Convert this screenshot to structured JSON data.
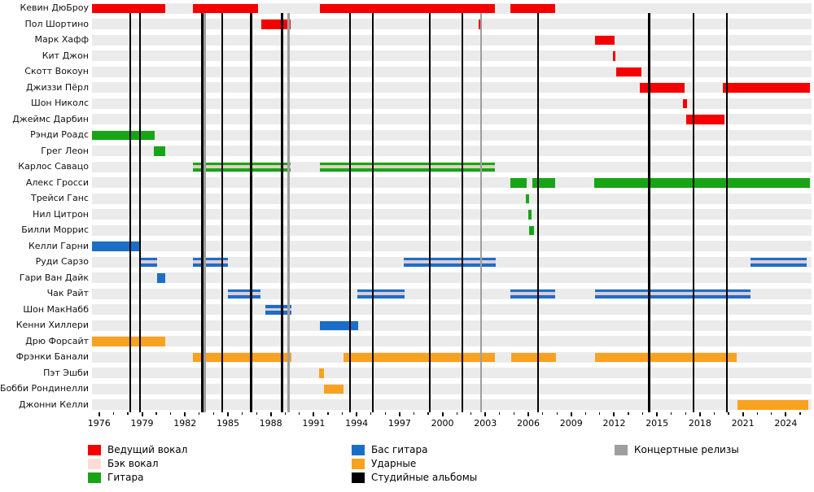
{
  "chart_data": {
    "type": "timeline-gantt",
    "title": "",
    "axis": {
      "start_year": 1975.5,
      "end_year": 2025.8,
      "major_tick_years": [
        1976,
        1979,
        1982,
        1985,
        1988,
        1991,
        1994,
        1997,
        2000,
        2003,
        2006,
        2009,
        2012,
        2015,
        2018,
        2021,
        2024
      ],
      "minor_tick_step": 1
    },
    "colors": {
      "lead_vocals": "#f40000",
      "backing_vocals": "#fcdcd6",
      "guitar": "#17a517",
      "bass": "#1b6ec8",
      "drums": "#f9a21f",
      "studio_album": "#000000",
      "live_release": "#9e9e9e",
      "row_band": "#ebebeb"
    },
    "legend": [
      {
        "label": "Ведущий вокал",
        "color_key": "lead_vocals",
        "col": 0,
        "row": 0
      },
      {
        "label": "Бэк вокал",
        "color_key": "backing_vocals",
        "col": 0,
        "row": 1
      },
      {
        "label": "Гитара",
        "color_key": "guitar",
        "col": 0,
        "row": 2
      },
      {
        "label": "Бас гитара",
        "color_key": "bass",
        "col": 1,
        "row": 0
      },
      {
        "label": "Ударные",
        "color_key": "drums",
        "col": 1,
        "row": 1
      },
      {
        "label": "Студийные альбомы",
        "color_key": "studio_album",
        "col": 1,
        "row": 2
      },
      {
        "label": "Концертные релизы",
        "color_key": "live_release",
        "col": 2,
        "row": 0
      }
    ],
    "members": [
      {
        "name": "Кевин ДюБроу",
        "role": "lead_vocals",
        "bars": [
          [
            1975.5,
            1980.62
          ],
          [
            1982.56,
            1987.11
          ],
          [
            1991.43,
            2003.66
          ],
          [
            2004.74,
            2007.87
          ]
        ]
      },
      {
        "name": "Пол Шортино",
        "role": "lead_vocals",
        "bars": [
          [
            1987.33,
            1989.38
          ],
          [
            2002.55,
            2002.73
          ]
        ]
      },
      {
        "name": "Марк Хафф",
        "role": "lead_vocals",
        "bars": [
          [
            2010.66,
            2012.03
          ]
        ]
      },
      {
        "name": "Кит Джон",
        "role": "lead_vocals",
        "bars": [
          [
            2011.89,
            2012.11
          ]
        ]
      },
      {
        "name": "Скотт Вокоун",
        "role": "lead_vocals",
        "bars": [
          [
            2012.14,
            2013.91
          ]
        ]
      },
      {
        "name": "Джиззи Пёрл",
        "role": "lead_vocals",
        "bars": [
          [
            2013.79,
            2016.92
          ],
          [
            2019.6,
            2025.69
          ]
        ]
      },
      {
        "name": "Шон Николс",
        "role": "lead_vocals",
        "bars": [
          [
            2016.81,
            2017.09
          ]
        ]
      },
      {
        "name": "Джеймс Дарбин",
        "role": "lead_vocals",
        "bars": [
          [
            2017.03,
            2019.71
          ]
        ]
      },
      {
        "name": "Рэнди Роадс",
        "role": "guitar",
        "bars": [
          [
            1975.5,
            1979.88
          ]
        ]
      },
      {
        "name": "Грег Леон",
        "role": "guitar",
        "bars": [
          [
            1979.82,
            1980.62
          ]
        ]
      },
      {
        "name": "Карлос Савацо",
        "role": "guitar",
        "backing_vocals": true,
        "bars": [
          [
            1982.56,
            1989.38
          ],
          [
            1991.43,
            2003.66
          ]
        ]
      },
      {
        "name": "Алекс Гросси",
        "role": "guitar",
        "bars": [
          [
            2004.74,
            2005.88
          ],
          [
            2006.28,
            2007.87
          ],
          [
            2010.61,
            2025.69
          ]
        ]
      },
      {
        "name": "Трейси Ганс",
        "role": "guitar",
        "bars": [
          [
            2005.8,
            2006.08
          ]
        ]
      },
      {
        "name": "Нил Цитрон",
        "role": "guitar",
        "bars": [
          [
            2006.0,
            2006.22
          ]
        ]
      },
      {
        "name": "Билли Моррис",
        "role": "guitar",
        "bars": [
          [
            2006.05,
            2006.39
          ]
        ]
      },
      {
        "name": "Келли Гарни",
        "role": "bass",
        "bars": [
          [
            1975.5,
            1978.8
          ]
        ]
      },
      {
        "name": "Руди Сарзо",
        "role": "bass",
        "backing_vocals": true,
        "bars": [
          [
            1978.8,
            1980.05
          ],
          [
            1982.58,
            1985.0
          ],
          [
            1997.29,
            2003.72
          ],
          [
            2021.53,
            2025.46
          ]
        ]
      },
      {
        "name": "Гари Ван Дайк",
        "role": "bass",
        "bars": [
          [
            1980.05,
            1980.62
          ]
        ]
      },
      {
        "name": "Чак Райт",
        "role": "bass",
        "backing_vocals": true,
        "bars": [
          [
            1985.0,
            1987.28
          ],
          [
            1994.05,
            1997.35
          ],
          [
            2004.74,
            2007.87
          ],
          [
            2010.66,
            2021.53
          ]
        ]
      },
      {
        "name": "Шон МакНабб",
        "role": "bass",
        "backing_vocals": true,
        "bars": [
          [
            1987.62,
            1989.44
          ]
        ]
      },
      {
        "name": "Кенни Хиллери",
        "role": "bass",
        "bars": [
          [
            1991.43,
            1994.11
          ]
        ]
      },
      {
        "name": "Дрю Форсайт",
        "role": "drums",
        "fuzzy": "top",
        "bars": [
          [
            1975.5,
            1980.62
          ]
        ]
      },
      {
        "name": "Фрэнки Банали",
        "role": "drums",
        "fuzzy": "bottom",
        "bars": [
          [
            1982.56,
            1989.44
          ],
          [
            1993.08,
            2003.66
          ],
          [
            2004.8,
            2007.93
          ],
          [
            2010.66,
            2020.57
          ]
        ]
      },
      {
        "name": "Пэт Эшби",
        "role": "drums",
        "bars": [
          [
            1991.4,
            1991.72
          ]
        ]
      },
      {
        "name": "Бобби Рондинелли",
        "role": "drums",
        "bars": [
          [
            1991.72,
            1993.08
          ]
        ]
      },
      {
        "name": "Джонни Келли",
        "role": "drums",
        "bars": [
          [
            2020.62,
            2025.57
          ]
        ]
      }
    ],
    "releases": {
      "studio_albums": [
        1978.17,
        1978.86,
        1983.2,
        1984.6,
        1986.62,
        1988.79,
        1993.54,
        1995.13,
        1999.11,
        2001.39,
        2006.68,
        2014.45,
        2017.55,
        2019.88
      ],
      "live_releases": [
        1983.38,
        1989.24,
        2002.7
      ]
    }
  }
}
